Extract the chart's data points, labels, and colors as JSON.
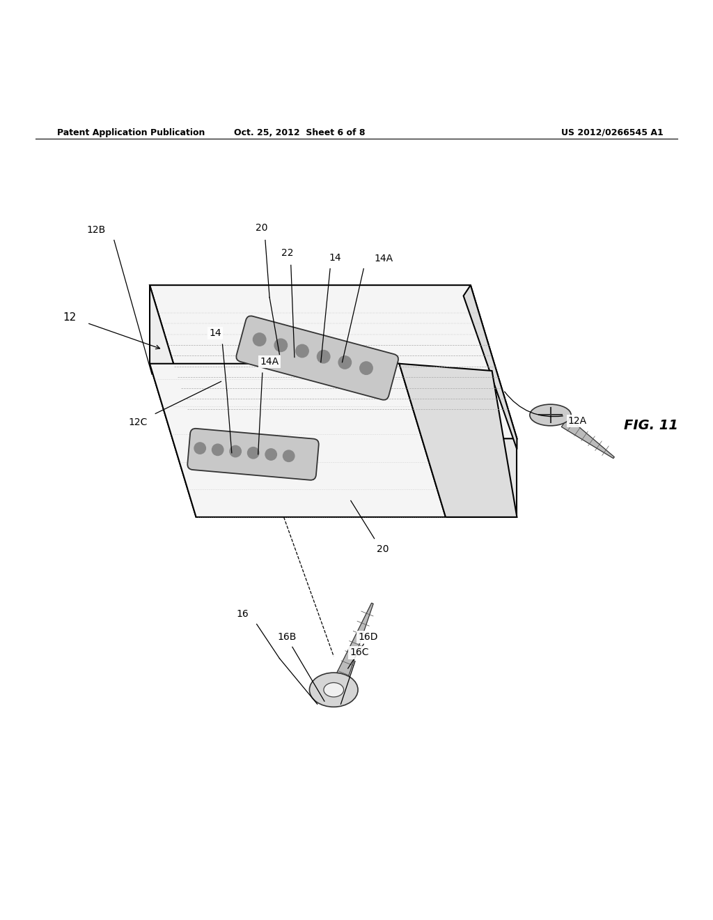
{
  "header_left": "Patent Application Publication",
  "header_center": "Oct. 25, 2012  Sheet 6 of 8",
  "header_right": "US 2012/0266545 A1",
  "figure_label": "FIG. 11",
  "bg_color": "#ffffff",
  "line_color": "#000000",
  "line_width": 1.5
}
